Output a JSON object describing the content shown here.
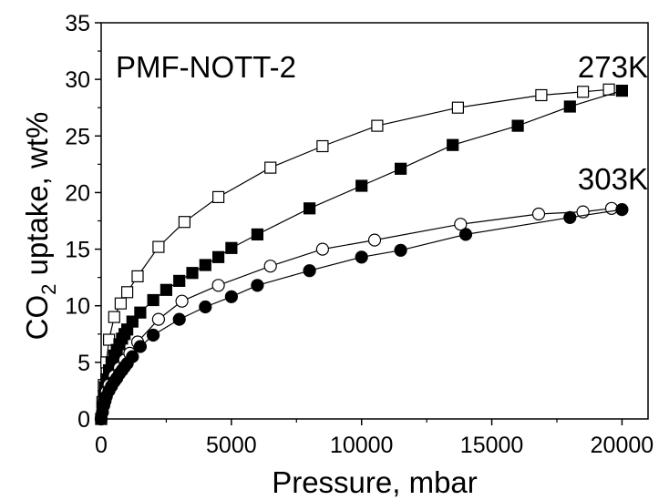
{
  "chart_data": {
    "type": "scatter",
    "title": "",
    "annotations": {
      "sample": "PMF-NOTT-2",
      "temp_high": "273K",
      "temp_low": "303K"
    },
    "xlabel": "Pressure, mbar",
    "ylabel": {
      "prefix": "CO",
      "subscript": "2",
      "suffix": " uptake, wt%"
    },
    "xlim": [
      0,
      21000
    ],
    "ylim": [
      0,
      35
    ],
    "xticks": [
      0,
      5000,
      10000,
      15000,
      20000
    ],
    "yticks": [
      0,
      5,
      10,
      15,
      20,
      25,
      30,
      35
    ],
    "grid": false,
    "series": [
      {
        "marker": "square-open",
        "color": "#000000",
        "x": [
          0,
          50,
          100,
          200,
          300,
          500,
          750,
          1000,
          1400,
          2200,
          3200,
          4500,
          6500,
          8500,
          10600,
          13700,
          16900,
          18500,
          19500
        ],
        "y": [
          0,
          1.5,
          3.0,
          5.0,
          7.0,
          9.0,
          10.2,
          11.2,
          12.6,
          15.2,
          17.4,
          19.6,
          22.2,
          24.1,
          25.9,
          27.5,
          28.6,
          28.9,
          29.1
        ]
      },
      {
        "marker": "square-filled",
        "color": "#000000",
        "x": [
          0,
          50,
          100,
          150,
          200,
          300,
          400,
          500,
          600,
          700,
          800,
          900,
          1000,
          1200,
          1500,
          2000,
          2500,
          3000,
          3500,
          4000,
          4500,
          5000,
          6000,
          8000,
          10000,
          11500,
          13500,
          16000,
          18000,
          20000
        ],
        "y": [
          0,
          1.0,
          2.0,
          2.8,
          3.5,
          4.3,
          5.0,
          5.6,
          6.1,
          6.6,
          7.1,
          7.5,
          7.9,
          8.6,
          9.4,
          10.5,
          11.4,
          12.2,
          12.9,
          13.6,
          14.3,
          15.1,
          16.3,
          18.6,
          20.6,
          22.1,
          24.2,
          25.9,
          27.6,
          29.0
        ]
      },
      {
        "marker": "circle-open",
        "color": "#000000",
        "x": [
          0,
          100,
          200,
          300,
          500,
          700,
          900,
          1100,
          1400,
          2200,
          3100,
          4500,
          6500,
          8500,
          10500,
          13800,
          16800,
          18500,
          19600
        ],
        "y": [
          0,
          1.5,
          2.4,
          3.0,
          3.8,
          4.5,
          5.2,
          5.8,
          6.8,
          8.8,
          10.4,
          11.8,
          13.5,
          15.0,
          15.8,
          17.2,
          18.1,
          18.3,
          18.6
        ]
      },
      {
        "marker": "circle-filled",
        "color": "#000000",
        "x": [
          0,
          50,
          100,
          150,
          200,
          300,
          400,
          500,
          600,
          700,
          800,
          900,
          1000,
          1200,
          1500,
          2000,
          3000,
          4000,
          5000,
          6000,
          8000,
          10000,
          11500,
          14000,
          18000,
          20000
        ],
        "y": [
          0,
          0.6,
          1.2,
          1.6,
          2.0,
          2.5,
          2.9,
          3.3,
          3.6,
          4.0,
          4.3,
          4.6,
          4.9,
          5.5,
          6.4,
          7.4,
          8.8,
          9.9,
          10.8,
          11.8,
          13.1,
          14.3,
          14.9,
          16.3,
          17.8,
          18.5
        ]
      }
    ]
  }
}
